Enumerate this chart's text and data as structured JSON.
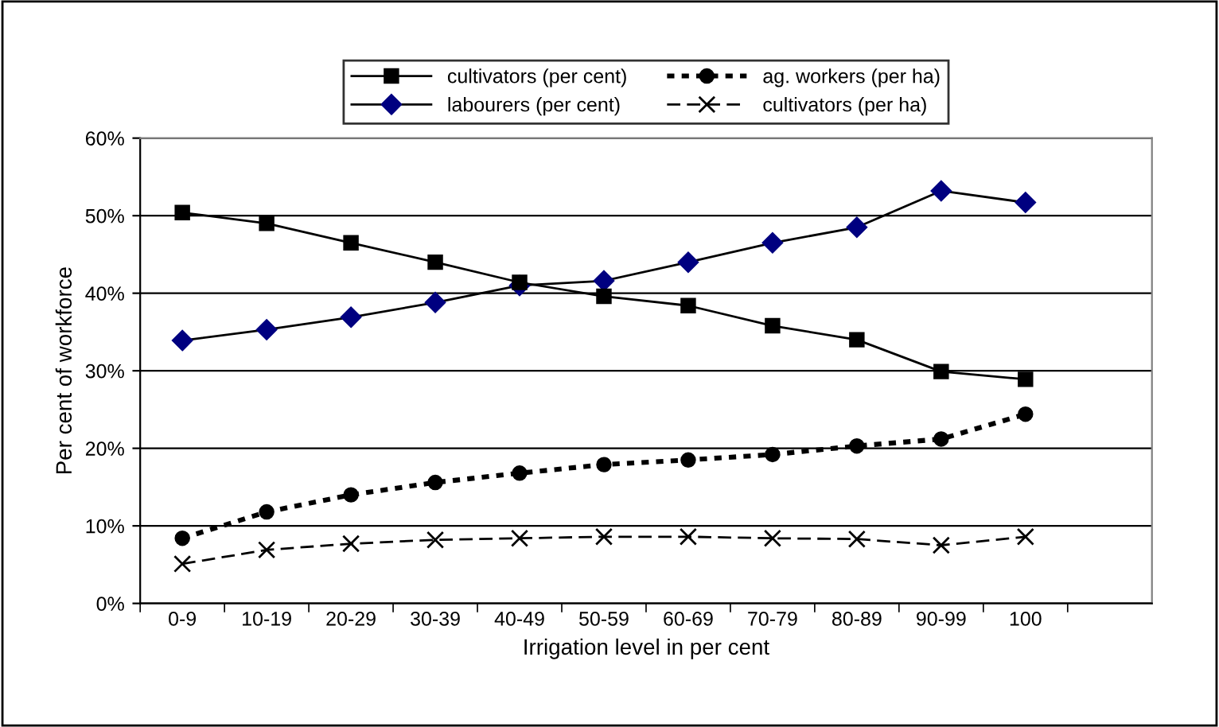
{
  "chart_data": {
    "type": "line",
    "xlabel": "Irrigation level in per cent",
    "ylabel": "Per cent of workforce",
    "categories": [
      "0-9",
      "10-19",
      "20-29",
      "30-39",
      "40-49",
      "50-59",
      "60-69",
      "70-79",
      "80-89",
      "90-99",
      "100"
    ],
    "series": [
      {
        "name": "cultivators (per cent)",
        "color": "#000000",
        "marker": "square",
        "line_style": "solid",
        "values": [
          50.4,
          49.0,
          46.5,
          44.0,
          41.4,
          39.6,
          38.4,
          35.8,
          34.0,
          29.9,
          28.9
        ]
      },
      {
        "name": "labourers (per cent)",
        "color": "#000080",
        "marker": "diamond",
        "line_style": "solid",
        "values": [
          33.9,
          35.3,
          36.9,
          38.8,
          41.0,
          41.6,
          44.0,
          46.5,
          48.5,
          53.2,
          51.7
        ]
      },
      {
        "name": "ag. workers (per ha)",
        "color": "#000000",
        "marker": "circle",
        "line_style": "dotted",
        "values": [
          8.4,
          11.8,
          14.0,
          15.6,
          16.8,
          17.9,
          18.5,
          19.2,
          20.3,
          21.2,
          24.4
        ]
      },
      {
        "name": "cultivators (per ha)",
        "color": "#000000",
        "marker": "cross",
        "line_style": "dashed",
        "values": [
          5.1,
          6.9,
          7.7,
          8.2,
          8.4,
          8.6,
          8.6,
          8.4,
          8.3,
          7.5,
          8.6
        ]
      }
    ],
    "ylim": [
      0,
      60
    ],
    "yticks": [
      {
        "value": 0,
        "label": "0%"
      },
      {
        "value": 10,
        "label": "10%"
      },
      {
        "value": 20,
        "label": "20%"
      },
      {
        "value": 30,
        "label": "30%"
      },
      {
        "value": 40,
        "label": "40%"
      },
      {
        "value": 50,
        "label": "50%"
      },
      {
        "value": 60,
        "label": "60%"
      }
    ],
    "grid": "y",
    "legend": "top"
  }
}
